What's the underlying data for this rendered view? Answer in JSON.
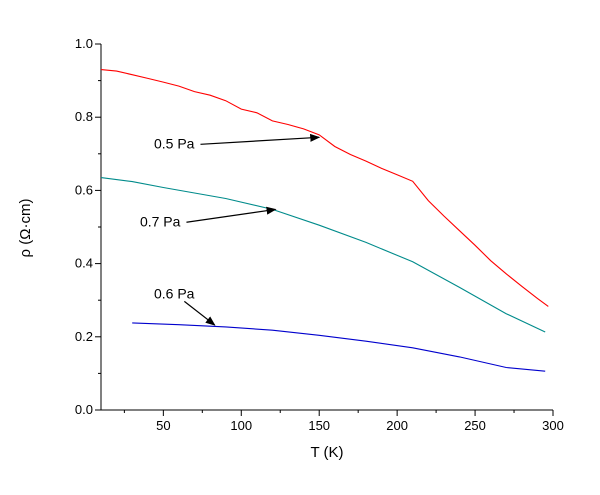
{
  "chart_data": {
    "type": "line",
    "title": "",
    "xlabel": "T (K)",
    "ylabel": "ρ (Ω·cm)",
    "xlim": [
      10,
      300
    ],
    "ylim": [
      0.0,
      1.0
    ],
    "x_ticks": [
      50,
      100,
      150,
      200,
      250,
      300
    ],
    "x_tick_labels": [
      "50",
      "100",
      "150",
      "200",
      "250",
      "300"
    ],
    "y_ticks": [
      0.0,
      0.2,
      0.4,
      0.6,
      0.8,
      1.0
    ],
    "y_tick_labels": [
      "0.0",
      "0.2",
      "0.4",
      "0.6",
      "0.8",
      "1.0"
    ],
    "grid": false,
    "series": [
      {
        "name": "0.5 Pa",
        "color": "#ff0000",
        "x": [
          10,
          20,
          30,
          40,
          50,
          60,
          70,
          80,
          90,
          100,
          110,
          120,
          130,
          140,
          150,
          160,
          170,
          180,
          190,
          200,
          210,
          220,
          230,
          240,
          250,
          260,
          270,
          280,
          290,
          297
        ],
        "y": [
          0.93,
          0.926,
          0.916,
          0.906,
          0.896,
          0.885,
          0.87,
          0.86,
          0.845,
          0.822,
          0.812,
          0.79,
          0.78,
          0.768,
          0.752,
          0.72,
          0.698,
          0.68,
          0.66,
          0.643,
          0.625,
          0.572,
          0.53,
          0.49,
          0.45,
          0.408,
          0.372,
          0.338,
          0.305,
          0.283
        ]
      },
      {
        "name": "0.7 Pa",
        "color": "#008b8b",
        "x": [
          10,
          30,
          50,
          70,
          90,
          120,
          150,
          180,
          210,
          240,
          270,
          295
        ],
        "y": [
          0.635,
          0.624,
          0.608,
          0.593,
          0.578,
          0.548,
          0.505,
          0.458,
          0.405,
          0.335,
          0.263,
          0.213
        ]
      },
      {
        "name": "0.6 Pa",
        "color": "#0000cd",
        "x": [
          30,
          60,
          90,
          120,
          150,
          180,
          210,
          240,
          270,
          295
        ],
        "y": [
          0.238,
          0.233,
          0.227,
          0.218,
          0.204,
          0.188,
          0.17,
          0.145,
          0.116,
          0.106
        ]
      }
    ],
    "annotations": [
      {
        "text": "0.5 Pa",
        "series": "0.5 Pa",
        "label_x": 44,
        "label_y": 0.715,
        "arrow_to_x": 150,
        "arrow_to_y": 0.745
      },
      {
        "text": "0.7 Pa",
        "series": "0.7 Pa",
        "label_x": 35,
        "label_y": 0.502,
        "arrow_to_x": 122,
        "arrow_to_y": 0.548
      },
      {
        "text": "0.6 Pa",
        "series": "0.6 Pa",
        "label_x": 44,
        "label_y": 0.305,
        "arrow_to_x": 83,
        "arrow_to_y": 0.232
      }
    ]
  }
}
